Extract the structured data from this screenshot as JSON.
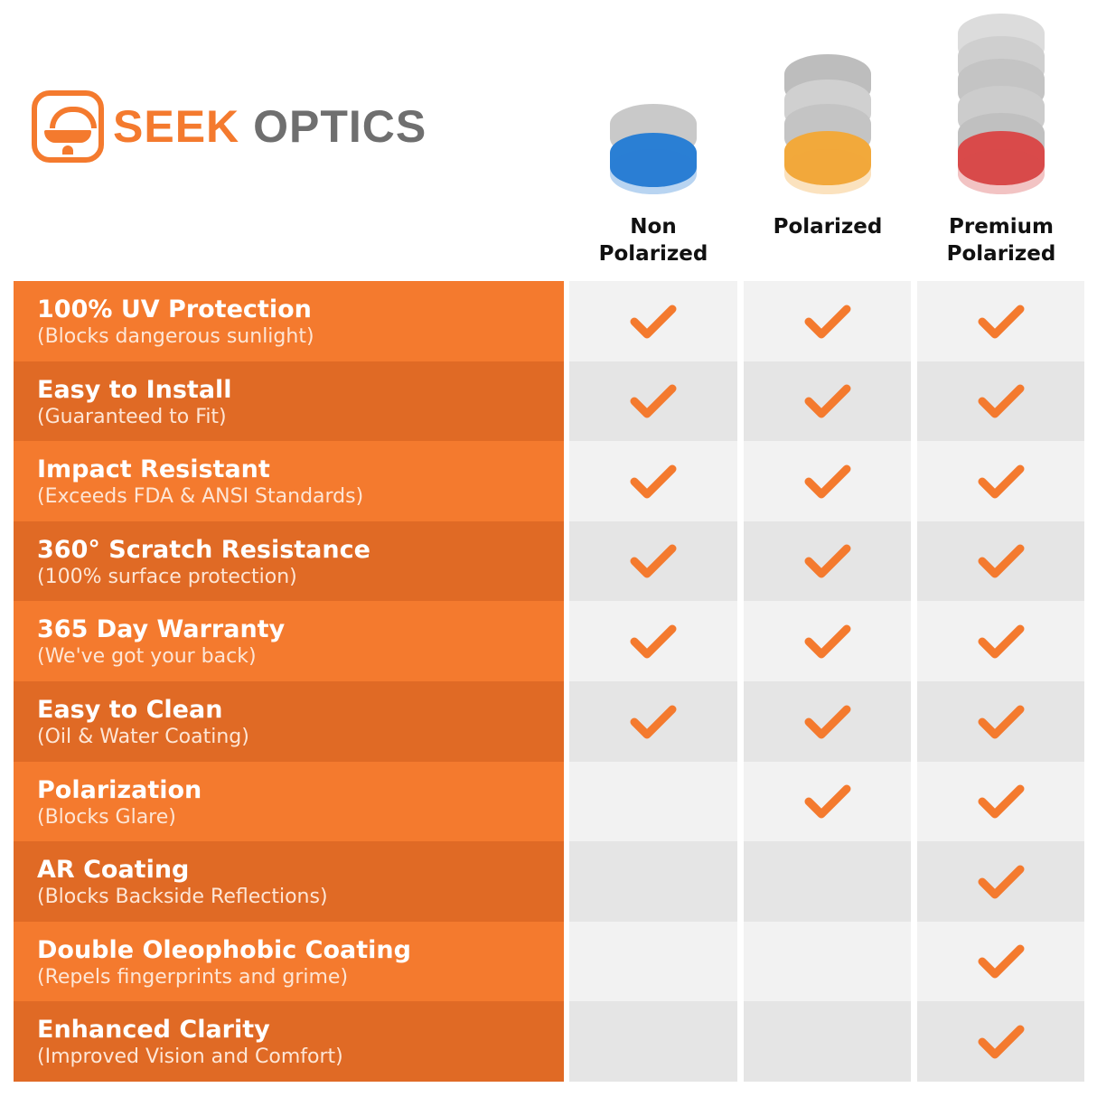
{
  "brand": {
    "logo_part1": "SEEK",
    "logo_part2": "OPTICS",
    "primary_color": "#f47a2e",
    "secondary_color": "#e06a25"
  },
  "columns": [
    {
      "label": "Non\nPolarized",
      "lens_color": "#2a7fd4"
    },
    {
      "label": "Polarized",
      "lens_color": "#f2a93b"
    },
    {
      "label": "Premium\nPolarized",
      "lens_color": "#d94a4a"
    }
  ],
  "rows": [
    {
      "title": "100% UV Protection",
      "subtitle": "(Blocks dangerous sunlight)",
      "checks": [
        true,
        true,
        true
      ]
    },
    {
      "title": "Easy to Install",
      "subtitle": "(Guaranteed to Fit)",
      "checks": [
        true,
        true,
        true
      ]
    },
    {
      "title": "Impact Resistant",
      "subtitle": "(Exceeds FDA & ANSI Standards)",
      "checks": [
        true,
        true,
        true
      ]
    },
    {
      "title": "360° Scratch Resistance",
      "subtitle": "(100% surface protection)",
      "checks": [
        true,
        true,
        true
      ]
    },
    {
      "title": "365 Day Warranty",
      "subtitle": "(We've got your back)",
      "checks": [
        true,
        true,
        true
      ]
    },
    {
      "title": "Easy to Clean",
      "subtitle": "(Oil & Water Coating)",
      "checks": [
        true,
        true,
        true
      ]
    },
    {
      "title": "Polarization",
      "subtitle": "(Blocks Glare)",
      "checks": [
        false,
        true,
        true
      ]
    },
    {
      "title": "AR Coating",
      "subtitle": "(Blocks Backside Reflections)",
      "checks": [
        false,
        false,
        true
      ]
    },
    {
      "title": "Double Oleophobic Coating",
      "subtitle": "(Repels fingerprints and grime)",
      "checks": [
        false,
        false,
        true
      ]
    },
    {
      "title": "Enhanced Clarity",
      "subtitle": "(Improved Vision and Comfort)",
      "checks": [
        false,
        false,
        true
      ]
    }
  ]
}
